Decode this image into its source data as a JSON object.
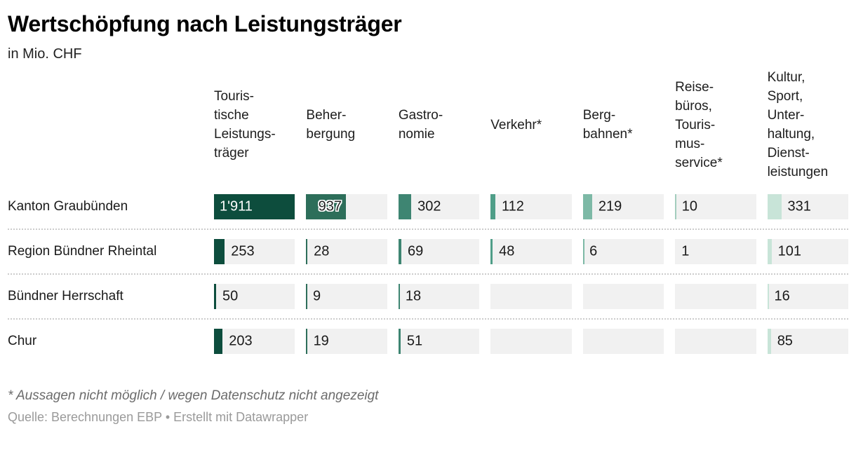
{
  "title": "Wertschöpfung nach Leistungsträger",
  "subtitle": "in Mio. CHF",
  "footnote": "* Aussagen nicht möglich / wegen Datenschutz nicht angezeigt",
  "source": "Quelle: Berechnungen EBP • Erstellt mit Datawrapper",
  "cell_background": "#f1f1f1",
  "separator_color": "#cccccc",
  "columns": [
    {
      "label": "Touris-\ntische\nLeistungs-\nträger",
      "color": "#0d4d3d"
    },
    {
      "label": "Beher-\nbergung",
      "color": "#2d6e5a"
    },
    {
      "label": "Gastro-\nnomie",
      "color": "#3e8572"
    },
    {
      "label": "Verkehr*",
      "color": "#4f9e88"
    },
    {
      "label": "Berg-\nbahnen*",
      "color": "#7db9a6"
    },
    {
      "label": "Reise-\nbüros,\nTouris-\nmus-\nservice*",
      "color": "#a3cdbe"
    },
    {
      "label": "Kultur,\nSport,\nUnter-\nhaltung,\nDienst-\nleistungen",
      "color": "#c8e4d8"
    }
  ],
  "scale_max": 1911,
  "rows": [
    {
      "label": "Kanton Graubünden",
      "cells": [
        {
          "value": "1'911",
          "raw": 1911,
          "label_style": "inside-start"
        },
        {
          "value": "937",
          "raw": 937,
          "label_style": "inside-end"
        },
        {
          "value": "302",
          "raw": 302
        },
        {
          "value": "112",
          "raw": 112
        },
        {
          "value": "219",
          "raw": 219
        },
        {
          "value": "10",
          "raw": 10
        },
        {
          "value": "331",
          "raw": 331
        }
      ]
    },
    {
      "label": "Region Bündner Rheintal",
      "cells": [
        {
          "value": "253",
          "raw": 253
        },
        {
          "value": "28",
          "raw": 28
        },
        {
          "value": "69",
          "raw": 69
        },
        {
          "value": "48",
          "raw": 48
        },
        {
          "value": "6",
          "raw": 6
        },
        {
          "value": "1",
          "raw": 1
        },
        {
          "value": "101",
          "raw": 101
        }
      ]
    },
    {
      "label": "Bündner Herrschaft",
      "cells": [
        {
          "value": "50",
          "raw": 50
        },
        {
          "value": "9",
          "raw": 9
        },
        {
          "value": "18",
          "raw": 18
        },
        null,
        null,
        null,
        {
          "value": "16",
          "raw": 16
        }
      ]
    },
    {
      "label": "Chur",
      "cells": [
        {
          "value": "203",
          "raw": 203
        },
        {
          "value": "19",
          "raw": 19
        },
        {
          "value": "51",
          "raw": 51
        },
        null,
        null,
        null,
        {
          "value": "85",
          "raw": 85
        }
      ]
    }
  ],
  "chart_data": {
    "type": "table",
    "title": "Wertschöpfung nach Leistungsträger",
    "subtitle": "in Mio. CHF",
    "unit": "Mio. CHF",
    "categories": [
      "Touristische Leistungsträger",
      "Beherbergung",
      "Gastronomie",
      "Verkehr*",
      "Bergbahnen*",
      "Reisebüros, Tourismusservice*",
      "Kultur, Sport, Unterhaltung, Dienstleistungen"
    ],
    "series": [
      {
        "name": "Kanton Graubünden",
        "values": [
          1911,
          937,
          302,
          112,
          219,
          10,
          331
        ]
      },
      {
        "name": "Region Bündner Rheintal",
        "values": [
          253,
          28,
          69,
          48,
          6,
          1,
          101
        ]
      },
      {
        "name": "Bündner Herrschaft",
        "values": [
          50,
          9,
          18,
          null,
          null,
          null,
          16
        ]
      },
      {
        "name": "Chur",
        "values": [
          203,
          19,
          51,
          null,
          null,
          null,
          85
        ]
      }
    ],
    "bar_scale_max": 1911,
    "bar_colors": [
      "#0d4d3d",
      "#2d6e5a",
      "#3e8572",
      "#4f9e88",
      "#7db9a6",
      "#a3cdbe",
      "#c8e4d8"
    ],
    "null_meaning": "Aussagen nicht möglich / wegen Datenschutz nicht angezeigt",
    "footnote": "* Aussagen nicht möglich / wegen Datenschutz nicht angezeigt",
    "source": "Quelle: Berechnungen EBP • Erstellt mit Datawrapper"
  }
}
